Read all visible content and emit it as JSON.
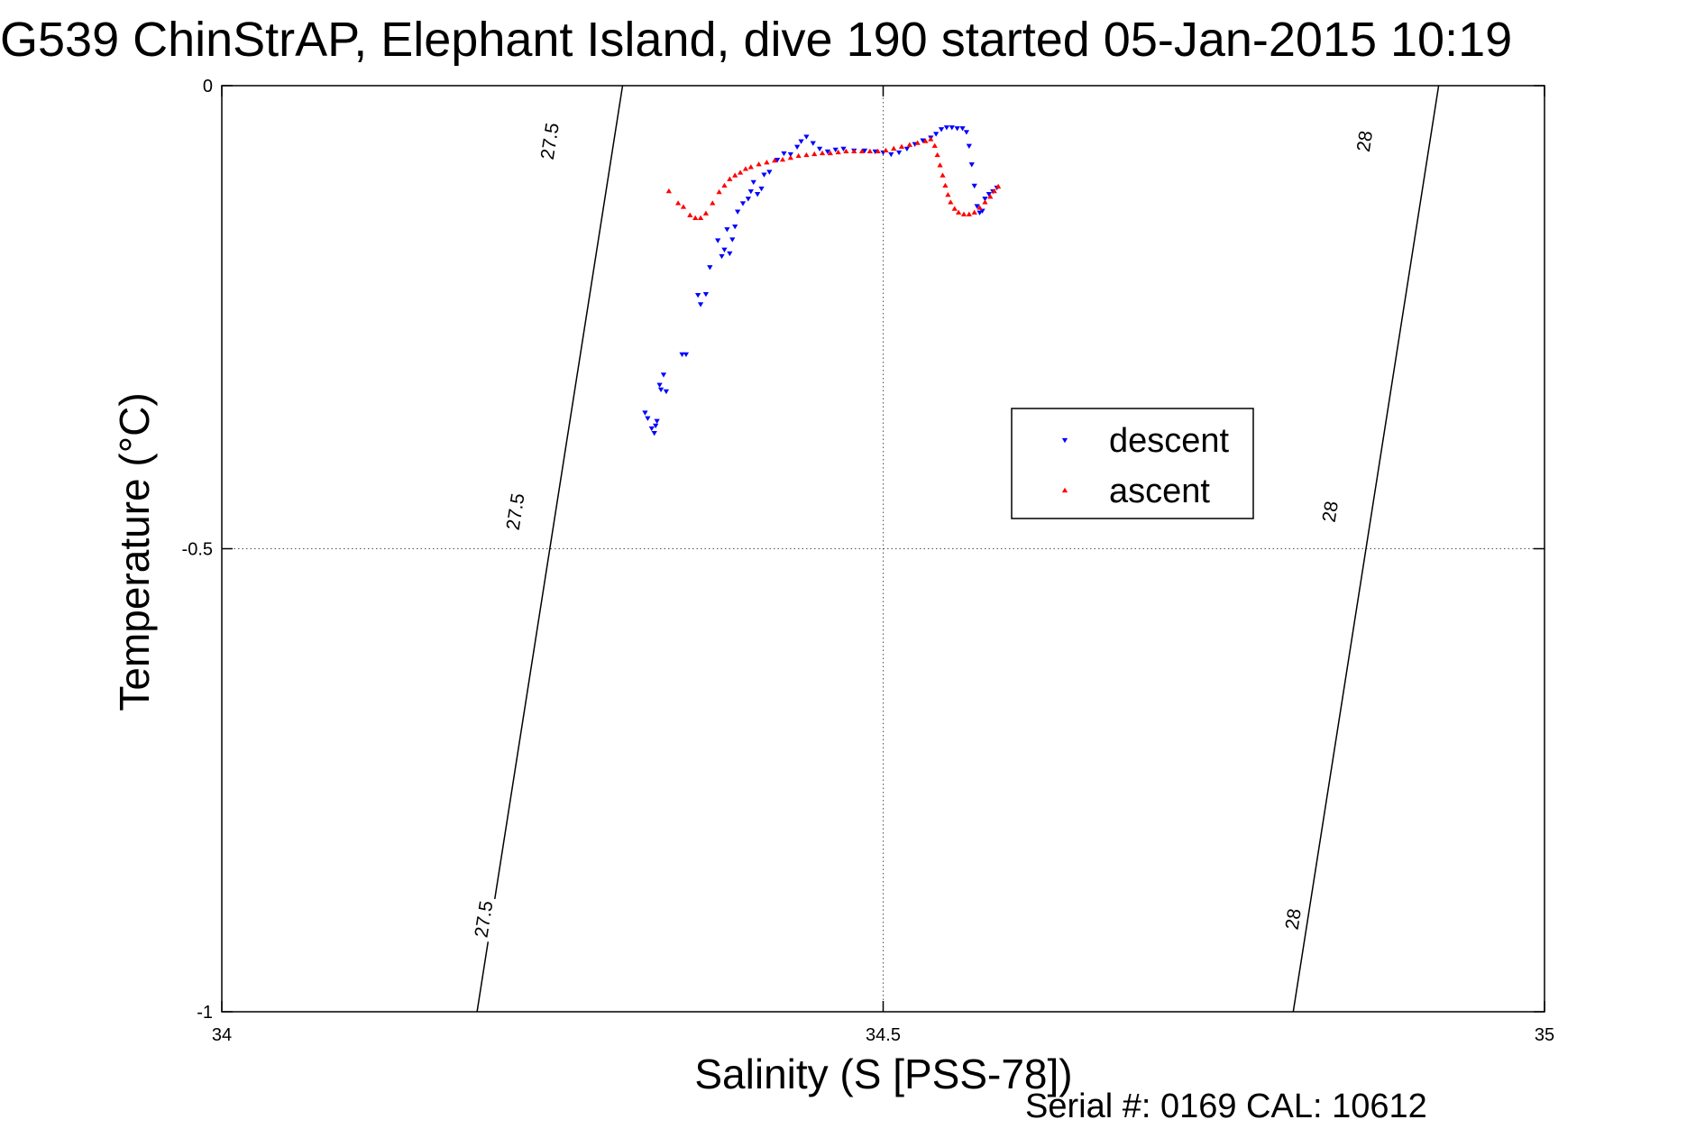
{
  "chart_data": {
    "type": "scatter",
    "title": "G539 ChinStrAP, Elephant Island, dive 190 started 05-Jan-2015 10:19",
    "xlabel": "Salinity (S [PSS-78])",
    "ylabel": "Temperature (°C)",
    "xlim": [
      34,
      35
    ],
    "ylim": [
      -1,
      0
    ],
    "xticks": [
      34,
      34.5,
      35
    ],
    "yticks": [
      -1,
      -0.5,
      0
    ],
    "xtick_labels": [
      "34",
      "34.5",
      "35"
    ],
    "ytick_labels": [
      "-1",
      "-0.5",
      "0"
    ],
    "grid": true,
    "legend_position": "right-middle",
    "footer": "Serial #: 0169 CAL: 10612",
    "contours": [
      {
        "label": "27.5",
        "points": [
          [
            34.193,
            -1.0
          ],
          [
            34.248,
            -0.5
          ],
          [
            34.303,
            0.0
          ]
        ],
        "label_positions": [
          [
            34.198,
            -0.9
          ],
          [
            34.222,
            -0.46
          ],
          [
            34.248,
            -0.06
          ]
        ]
      },
      {
        "label": "28",
        "points": [
          [
            34.81,
            -1.0
          ],
          [
            34.865,
            -0.5
          ],
          [
            34.92,
            0.0
          ]
        ],
        "label_positions": [
          [
            34.81,
            -0.9
          ],
          [
            34.838,
            -0.46
          ],
          [
            34.864,
            -0.06
          ]
        ]
      }
    ],
    "series": [
      {
        "name": "descent",
        "color": "#0000ff",
        "marker": "triangle-down",
        "points": [
          [
            34.32,
            -0.353
          ],
          [
            34.322,
            -0.359
          ],
          [
            34.325,
            -0.37
          ],
          [
            34.327,
            -0.375
          ],
          [
            34.328,
            -0.367
          ],
          [
            34.329,
            -0.362
          ],
          [
            34.331,
            -0.323
          ],
          [
            34.332,
            -0.328
          ],
          [
            34.334,
            -0.312
          ],
          [
            34.336,
            -0.33
          ],
          [
            34.348,
            -0.29
          ],
          [
            34.351,
            -0.29
          ],
          [
            34.36,
            -0.226
          ],
          [
            34.362,
            -0.236
          ],
          [
            34.366,
            -0.225
          ],
          [
            34.369,
            -0.196
          ],
          [
            34.375,
            -0.167
          ],
          [
            34.378,
            -0.184
          ],
          [
            34.38,
            -0.177
          ],
          [
            34.382,
            -0.155
          ],
          [
            34.384,
            -0.181
          ],
          [
            34.386,
            -0.166
          ],
          [
            34.388,
            -0.152
          ],
          [
            34.39,
            -0.136
          ],
          [
            34.394,
            -0.127
          ],
          [
            34.398,
            -0.122
          ],
          [
            34.4,
            -0.114
          ],
          [
            34.402,
            -0.104
          ],
          [
            34.405,
            -0.117
          ],
          [
            34.408,
            -0.111
          ],
          [
            34.41,
            -0.096
          ],
          [
            34.414,
            -0.093
          ],
          [
            34.42,
            -0.08
          ],
          [
            34.425,
            -0.073
          ],
          [
            34.43,
            -0.074
          ],
          [
            34.435,
            -0.066
          ],
          [
            34.438,
            -0.06
          ],
          [
            34.442,
            -0.055
          ],
          [
            34.447,
            -0.062
          ],
          [
            34.452,
            -0.068
          ],
          [
            34.458,
            -0.071
          ],
          [
            34.464,
            -0.069
          ],
          [
            34.47,
            -0.068
          ],
          [
            34.478,
            -0.07
          ],
          [
            34.486,
            -0.07
          ],
          [
            34.494,
            -0.071
          ],
          [
            34.5,
            -0.072
          ],
          [
            34.506,
            -0.074
          ],
          [
            34.512,
            -0.072
          ],
          [
            34.518,
            -0.068
          ],
          [
            34.524,
            -0.063
          ],
          [
            34.53,
            -0.059
          ],
          [
            34.536,
            -0.056
          ],
          [
            34.54,
            -0.052
          ],
          [
            34.544,
            -0.047
          ],
          [
            34.548,
            -0.045
          ],
          [
            34.552,
            -0.045
          ],
          [
            34.556,
            -0.046
          ],
          [
            34.56,
            -0.046
          ],
          [
            34.563,
            -0.05
          ],
          [
            34.565,
            -0.065
          ],
          [
            34.567,
            -0.085
          ],
          [
            34.569,
            -0.108
          ],
          [
            34.571,
            -0.13
          ],
          [
            34.573,
            -0.137
          ],
          [
            34.575,
            -0.135
          ],
          [
            34.577,
            -0.122
          ],
          [
            34.58,
            -0.117
          ],
          [
            34.583,
            -0.114
          ],
          [
            34.586,
            -0.11
          ]
        ]
      },
      {
        "name": "ascent",
        "color": "#ff0000",
        "marker": "triangle-up",
        "points": [
          [
            34.338,
            -0.114
          ],
          [
            34.345,
            -0.127
          ],
          [
            34.349,
            -0.131
          ],
          [
            34.354,
            -0.14
          ],
          [
            34.358,
            -0.143
          ],
          [
            34.362,
            -0.143
          ],
          [
            34.366,
            -0.138
          ],
          [
            34.371,
            -0.127
          ],
          [
            34.376,
            -0.115
          ],
          [
            34.38,
            -0.108
          ],
          [
            34.384,
            -0.101
          ],
          [
            34.388,
            -0.097
          ],
          [
            34.392,
            -0.094
          ],
          [
            34.396,
            -0.09
          ],
          [
            34.4,
            -0.088
          ],
          [
            34.406,
            -0.085
          ],
          [
            34.412,
            -0.083
          ],
          [
            34.418,
            -0.081
          ],
          [
            34.424,
            -0.08
          ],
          [
            34.43,
            -0.078
          ],
          [
            34.436,
            -0.076
          ],
          [
            34.442,
            -0.075
          ],
          [
            34.448,
            -0.074
          ],
          [
            34.454,
            -0.073
          ],
          [
            34.46,
            -0.073
          ],
          [
            34.466,
            -0.072
          ],
          [
            34.472,
            -0.071
          ],
          [
            34.478,
            -0.071
          ],
          [
            34.484,
            -0.071
          ],
          [
            34.49,
            -0.071
          ],
          [
            34.496,
            -0.071
          ],
          [
            34.502,
            -0.07
          ],
          [
            34.508,
            -0.068
          ],
          [
            34.514,
            -0.066
          ],
          [
            34.52,
            -0.064
          ],
          [
            34.526,
            -0.062
          ],
          [
            34.532,
            -0.06
          ],
          [
            34.536,
            -0.058
          ],
          [
            34.539,
            -0.065
          ],
          [
            34.541,
            -0.075
          ],
          [
            34.543,
            -0.086
          ],
          [
            34.545,
            -0.097
          ],
          [
            34.547,
            -0.108
          ],
          [
            34.549,
            -0.118
          ],
          [
            34.551,
            -0.126
          ],
          [
            34.554,
            -0.133
          ],
          [
            34.557,
            -0.137
          ],
          [
            34.561,
            -0.139
          ],
          [
            34.565,
            -0.139
          ],
          [
            34.569,
            -0.137
          ],
          [
            34.573,
            -0.132
          ],
          [
            34.577,
            -0.126
          ],
          [
            34.581,
            -0.12
          ],
          [
            34.584,
            -0.114
          ],
          [
            34.587,
            -0.109
          ]
        ]
      }
    ]
  }
}
